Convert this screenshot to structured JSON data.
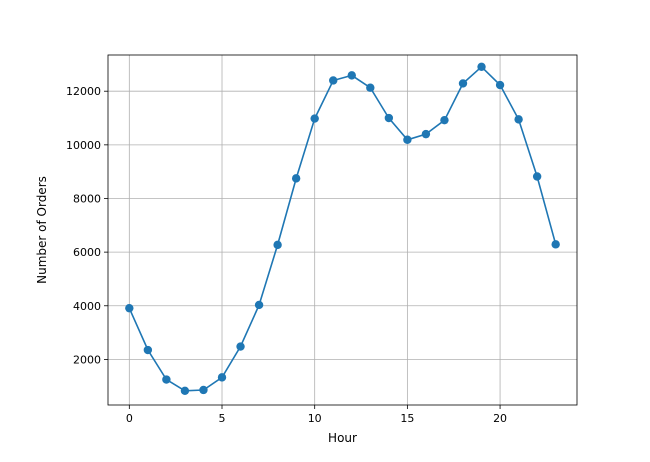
{
  "chart_data": {
    "type": "line",
    "title": "",
    "xlabel": "Hour",
    "ylabel": "Number of Orders",
    "xlim": [
      -1.15,
      24.15
    ],
    "ylim": [
      300,
      13350
    ],
    "x_ticks": [
      0,
      5,
      10,
      15,
      20
    ],
    "y_ticks": [
      2000,
      4000,
      6000,
      8000,
      10000,
      12000
    ],
    "x_tick_labels": [
      "0",
      "5",
      "10",
      "15",
      "20"
    ],
    "y_tick_labels": [
      "2000",
      "4000",
      "6000",
      "8000",
      "10000",
      "12000"
    ],
    "grid": true,
    "marker": "circle",
    "color": "#1f77b4",
    "x": [
      0,
      1,
      2,
      3,
      4,
      5,
      6,
      7,
      8,
      9,
      10,
      11,
      12,
      13,
      14,
      15,
      16,
      17,
      18,
      19,
      20,
      21,
      22,
      23
    ],
    "values": [
      3910,
      2350,
      1250,
      830,
      860,
      1330,
      2480,
      4030,
      6270,
      8750,
      10980,
      12400,
      12590,
      12130,
      11000,
      10190,
      10400,
      10920,
      12290,
      12910,
      12230,
      10950,
      8820,
      6290
    ]
  }
}
